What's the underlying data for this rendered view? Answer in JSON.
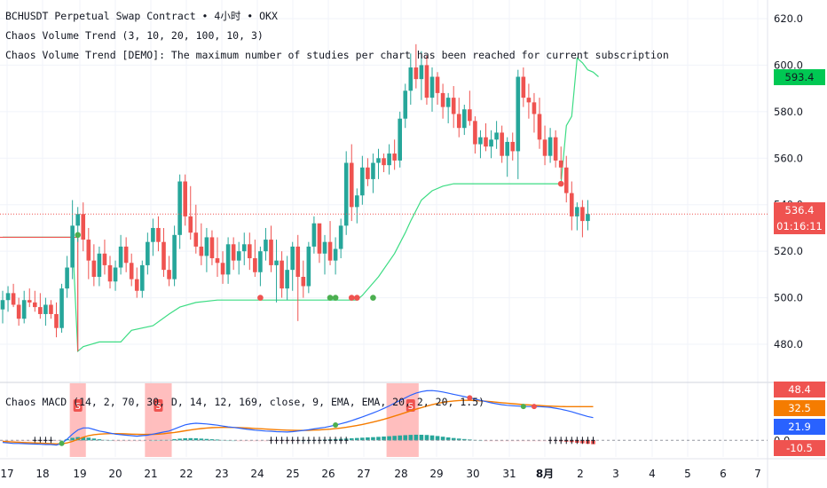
{
  "legend": {
    "line1": "BCHUSDT Perpetual Swap Contract • 4小时 • OKX",
    "line2": "Chaos Volume Trend (3, 10, 20, 100, 10, 3)",
    "line3": "Chaos Volume Trend [DEMO]: The maximum number of studies per chart has been reached for current subscription",
    "macd": "Chaos MACD (14, 2, 70, 30, D, 14, 12, 169, close, 9, EMA, EMA, 20, 2, 20, 1.5)"
  },
  "colors": {
    "up": "#26a69a",
    "down": "#ef5350",
    "trend_line": "#3ddc84",
    "macd_line": "#2962ff",
    "signal_line": "#f57c00",
    "highlight": "#ffb3b3"
  },
  "price_tags": {
    "green_tag": "593.4",
    "current_price": "536.4",
    "countdown": "01:16:11"
  },
  "macd_tags": {
    "t1": "48.4",
    "t2": "32.5",
    "t3": "21.9",
    "t4": "-10.5",
    "zero": "0.0"
  },
  "chart_data": {
    "type": "candlestick",
    "y_axis_ticks": [
      "620.0",
      "600.0",
      "580.0",
      "560.0",
      "540.0",
      "520.0",
      "500.0",
      "480.0"
    ],
    "ylim": [
      464,
      628
    ],
    "x_axis_ticks": [
      "17",
      "18",
      "19",
      "20",
      "21",
      "22",
      "23",
      "24",
      "25",
      "26",
      "27",
      "28",
      "29",
      "30",
      "31",
      "8月",
      "2",
      "3",
      "4",
      "5",
      "6",
      "7"
    ],
    "candles_ohlc": [
      [
        495,
        503,
        489,
        499
      ],
      [
        499,
        505,
        494,
        502
      ],
      [
        502,
        506,
        496,
        497
      ],
      [
        497,
        500,
        488,
        491
      ],
      [
        491,
        503,
        489,
        499
      ],
      [
        499,
        504,
        496,
        498
      ],
      [
        498,
        503,
        494,
        496
      ],
      [
        496,
        502,
        491,
        493
      ],
      [
        493,
        500,
        488,
        497
      ],
      [
        497,
        499,
        491,
        493
      ],
      [
        493,
        498,
        483,
        487
      ],
      [
        487,
        506,
        485,
        504
      ],
      [
        504,
        518,
        500,
        513
      ],
      [
        513,
        542,
        508,
        531
      ],
      [
        531,
        539,
        524,
        536
      ],
      [
        536,
        541,
        520,
        525
      ],
      [
        525,
        530,
        508,
        516
      ],
      [
        516,
        523,
        505,
        509
      ],
      [
        509,
        522,
        505,
        519
      ],
      [
        519,
        525,
        510,
        514
      ],
      [
        514,
        518,
        504,
        507
      ],
      [
        507,
        516,
        503,
        513
      ],
      [
        513,
        527,
        510,
        522
      ],
      [
        522,
        526,
        511,
        515
      ],
      [
        515,
        519,
        505,
        508
      ],
      [
        508,
        513,
        500,
        503
      ],
      [
        503,
        516,
        500,
        514
      ],
      [
        514,
        528,
        510,
        524
      ],
      [
        524,
        534,
        518,
        530
      ],
      [
        530,
        535,
        520,
        524
      ],
      [
        524,
        530,
        509,
        512
      ],
      [
        512,
        518,
        505,
        508
      ],
      [
        508,
        531,
        505,
        527
      ],
      [
        527,
        553,
        521,
        550
      ],
      [
        550,
        553,
        531,
        535
      ],
      [
        535,
        548,
        525,
        528
      ],
      [
        528,
        540,
        519,
        522
      ],
      [
        522,
        532,
        514,
        518
      ],
      [
        518,
        530,
        511,
        526
      ],
      [
        526,
        529,
        514,
        517
      ],
      [
        517,
        526,
        509,
        515
      ],
      [
        515,
        520,
        506,
        510
      ],
      [
        510,
        526,
        506,
        523
      ],
      [
        523,
        526,
        512,
        516
      ],
      [
        516,
        524,
        510,
        520
      ],
      [
        520,
        528,
        514,
        523
      ],
      [
        523,
        528,
        512,
        517
      ],
      [
        517,
        525,
        509,
        511
      ],
      [
        511,
        522,
        505,
        520
      ],
      [
        520,
        530,
        516,
        525
      ],
      [
        525,
        531,
        511,
        514
      ],
      [
        514,
        525,
        498,
        516
      ],
      [
        516,
        520,
        500,
        504
      ],
      [
        504,
        518,
        499,
        512
      ],
      [
        512,
        524,
        503,
        522
      ],
      [
        522,
        527,
        490,
        509
      ],
      [
        509,
        516,
        500,
        505
      ],
      [
        505,
        524,
        502,
        522
      ],
      [
        522,
        535,
        519,
        532
      ],
      [
        532,
        529,
        515,
        519
      ],
      [
        519,
        527,
        510,
        524
      ],
      [
        524,
        533,
        514,
        516
      ],
      [
        516,
        526,
        510,
        521
      ],
      [
        521,
        534,
        517,
        531
      ],
      [
        531,
        563,
        527,
        558
      ],
      [
        558,
        566,
        533,
        539
      ],
      [
        539,
        547,
        532,
        544
      ],
      [
        544,
        561,
        540,
        556
      ],
      [
        556,
        560,
        548,
        551
      ],
      [
        551,
        562,
        545,
        558
      ],
      [
        558,
        564,
        551,
        560
      ],
      [
        560,
        562,
        554,
        557
      ],
      [
        557,
        566,
        553,
        562
      ],
      [
        562,
        568,
        555,
        559
      ],
      [
        559,
        580,
        556,
        577
      ],
      [
        577,
        592,
        573,
        589
      ],
      [
        589,
        605,
        583,
        599
      ],
      [
        599,
        609,
        590,
        594
      ],
      [
        594,
        606,
        585,
        600
      ],
      [
        600,
        604,
        583,
        586
      ],
      [
        586,
        599,
        580,
        595
      ],
      [
        595,
        597,
        583,
        588
      ],
      [
        588,
        592,
        577,
        582
      ],
      [
        582,
        588,
        575,
        586
      ],
      [
        586,
        591,
        573,
        579
      ],
      [
        579,
        586,
        569,
        573
      ],
      [
        573,
        583,
        570,
        581
      ],
      [
        581,
        589,
        574,
        576
      ],
      [
        576,
        578,
        562,
        566
      ],
      [
        566,
        572,
        560,
        569
      ],
      [
        569,
        575,
        563,
        565
      ],
      [
        565,
        572,
        560,
        568
      ],
      [
        568,
        576,
        564,
        571
      ],
      [
        571,
        574,
        558,
        561
      ],
      [
        561,
        569,
        552,
        567
      ],
      [
        567,
        571,
        559,
        563
      ],
      [
        563,
        598,
        551,
        595
      ],
      [
        595,
        599,
        582,
        586
      ],
      [
        586,
        592,
        577,
        584
      ],
      [
        584,
        588,
        571,
        579
      ],
      [
        579,
        586,
        564,
        568
      ],
      [
        568,
        574,
        557,
        561
      ],
      [
        561,
        573,
        558,
        569
      ],
      [
        569,
        572,
        556,
        559
      ],
      [
        559,
        565,
        551,
        556
      ],
      [
        556,
        561,
        541,
        545
      ],
      [
        545,
        550,
        529,
        535
      ],
      [
        535,
        541,
        529,
        539
      ],
      [
        539,
        542,
        526,
        533
      ],
      [
        533,
        542,
        529,
        536
      ]
    ],
    "series": [
      {
        "name": "",
        "type": "line",
        "color": "#3ddc84",
        "points": [
          [
            0,
            526
          ],
          [
            13,
            526
          ],
          [
            14,
            477
          ],
          [
            15,
            479
          ],
          [
            18,
            481
          ],
          [
            22,
            481
          ],
          [
            24,
            486
          ],
          [
            28,
            488
          ],
          [
            31,
            493
          ],
          [
            33,
            496
          ],
          [
            36,
            498
          ],
          [
            40,
            499
          ],
          [
            47,
            499
          ],
          [
            55,
            499
          ],
          [
            66,
            499
          ],
          [
            67,
            501
          ],
          [
            70,
            509
          ],
          [
            73,
            519
          ],
          [
            75,
            528
          ],
          [
            76,
            533
          ],
          [
            78,
            542
          ],
          [
            80,
            546
          ],
          [
            82,
            548
          ],
          [
            84,
            549
          ],
          [
            90,
            549
          ],
          [
            100,
            549
          ],
          [
            102,
            549
          ],
          [
            104,
            549
          ],
          [
            105,
            574
          ],
          [
            106,
            578
          ],
          [
            107,
            603
          ],
          [
            108,
            601
          ],
          [
            109,
            598
          ],
          [
            110,
            597
          ],
          [
            111,
            595
          ]
        ]
      }
    ],
    "trend_markers": [
      {
        "i": 14,
        "y": 527,
        "color": "#4caf50"
      },
      {
        "i": 48,
        "y": 500,
        "color": "#ef5350"
      },
      {
        "i": 61,
        "y": 500,
        "color": "#4caf50"
      },
      {
        "i": 62,
        "y": 500,
        "color": "#4caf50"
      },
      {
        "i": 65,
        "y": 500,
        "color": "#ef5350"
      },
      {
        "i": 66,
        "y": 500,
        "color": "#ef5350"
      },
      {
        "i": 69,
        "y": 500,
        "color": "#4caf50"
      },
      {
        "i": 104,
        "y": 549,
        "color": "#ef5350"
      }
    ],
    "macd": {
      "macd_line": [
        -2,
        -2.5,
        -3,
        -3,
        -3.2,
        -3.4,
        -3.6,
        -3.8,
        -4,
        -4,
        -4.5,
        -3,
        1,
        6,
        10,
        12,
        12,
        10.5,
        9,
        8,
        7,
        6,
        5.5,
        5,
        4.5,
        4,
        4.5,
        5,
        6,
        7,
        8,
        9,
        11,
        13,
        15,
        16,
        16.5,
        16.2,
        15.8,
        15.2,
        14.6,
        13.8,
        13,
        12.5,
        11.8,
        11,
        10.4,
        9.8,
        9.4,
        9,
        8.8,
        8.4,
        8.2,
        8,
        8.4,
        9,
        9.6,
        10.2,
        11,
        11.8,
        12.5,
        13.6,
        14.8,
        16,
        17.4,
        19,
        20.8,
        22.6,
        24.5,
        26.4,
        28.5,
        30.8,
        33.2,
        35.8,
        38.5,
        41,
        43.5,
        45.5,
        47,
        47.8,
        48,
        47.5,
        46.6,
        45.5,
        44.4,
        43.3,
        42.2,
        41,
        39.8,
        38.6,
        37.4,
        36.2,
        35.2,
        34.4,
        33.8,
        33.4,
        33,
        32.7,
        32.6,
        32.6,
        32.5,
        32.2,
        31.8,
        31,
        30,
        28.8,
        27.5,
        26,
        24.5,
        23,
        21.9
      ],
      "signal_line": [
        -1,
        -1.3,
        -1.6,
        -1.9,
        -2.1,
        -2.3,
        -2.5,
        -2.7,
        -2.9,
        -3.1,
        -3.3,
        -3.3,
        -2.5,
        -1,
        1,
        3,
        4.5,
        5.5,
        6,
        6.3,
        6.5,
        6.5,
        6.4,
        6.2,
        6,
        5.8,
        5.7,
        5.7,
        5.8,
        6,
        6.4,
        7,
        7.6,
        8.4,
        9.2,
        10,
        10.8,
        11.4,
        11.9,
        12.2,
        12.4,
        12.5,
        12.5,
        12.4,
        12.3,
        12.1,
        11.8,
        11.5,
        11.2,
        10.9,
        10.6,
        10.3,
        10,
        9.8,
        9.7,
        9.6,
        9.6,
        9.7,
        9.9,
        10.1,
        10.4,
        10.8,
        11.3,
        11.9,
        12.6,
        13.4,
        14.3,
        15.3,
        16.4,
        17.6,
        18.9,
        20.3,
        21.8,
        23.4,
        25,
        26.7,
        28.4,
        30,
        31.6,
        33,
        34.4,
        35.6,
        36.6,
        37.4,
        38,
        38.4,
        38.6,
        38.6,
        38.4,
        38.1,
        37.7,
        37.3,
        36.8,
        36.3,
        35.8,
        35.3,
        34.9,
        34.5,
        34.2,
        33.9,
        33.6,
        33.3,
        33,
        32.8,
        32.6,
        32.5,
        32.5,
        32.5,
        32.5,
        32.5,
        32.5
      ],
      "ylim": [
        -16,
        55
      ],
      "signal_dots": [
        {
          "i": 11,
          "color": "#4caf50"
        },
        {
          "i": 62,
          "color": "#4caf50"
        },
        {
          "i": 87,
          "color": "#ef5350"
        },
        {
          "i": 97,
          "color": "#4caf50"
        },
        {
          "i": 99,
          "color": "#ef5350"
        }
      ],
      "highlight_ranges": [
        [
          13,
          15
        ],
        [
          27,
          31
        ],
        [
          72,
          77
        ]
      ],
      "highlight_labels": [
        {
          "i": 14,
          "text": "S"
        },
        {
          "i": 29,
          "text": "S"
        },
        {
          "i": 76,
          "text": "S"
        }
      ],
      "plus_ranges": [
        [
          6,
          9
        ],
        [
          50,
          64
        ],
        [
          102,
          110
        ]
      ]
    }
  }
}
